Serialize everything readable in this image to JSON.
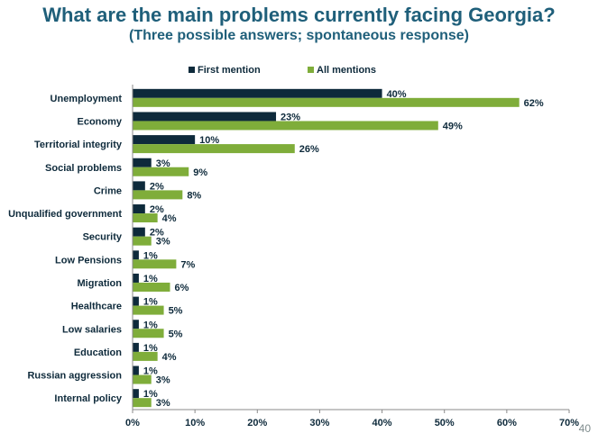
{
  "header": {
    "title": "What are the main problems currently facing Georgia?",
    "subtitle": "(Three possible answers; spontaneous response)"
  },
  "page_number": "40",
  "colors": {
    "first": "#0e2a3b",
    "all": "#7fad3a",
    "text": "#0e2a3b",
    "axis": "#8a8a8a"
  },
  "chart_data": {
    "type": "bar",
    "orientation": "horizontal",
    "title": "What are the main problems currently facing Georgia?",
    "subtitle": "(Three possible answers; spontaneous response)",
    "categories": [
      "Unemployment",
      "Economy",
      "Territorial integrity",
      "Social problems",
      "Crime",
      "Unqualified government",
      "Security",
      "Low Pensions",
      "Migration",
      "Healthcare",
      "Low salaries",
      "Education",
      "Russian aggression",
      "Internal policy"
    ],
    "series": [
      {
        "name": "First mention",
        "values": [
          40,
          23,
          10,
          3,
          2,
          2,
          2,
          1,
          1,
          1,
          1,
          1,
          1,
          1
        ]
      },
      {
        "name": "All mentions",
        "values": [
          62,
          49,
          26,
          9,
          8,
          4,
          3,
          7,
          6,
          5,
          5,
          4,
          3,
          3
        ]
      }
    ],
    "value_suffix": "%",
    "xlim": [
      0,
      70
    ],
    "xticks": [
      "0%",
      "10%",
      "20%",
      "30%",
      "40%",
      "50%",
      "60%",
      "70%"
    ],
    "grid": false,
    "legend_position": "top"
  }
}
